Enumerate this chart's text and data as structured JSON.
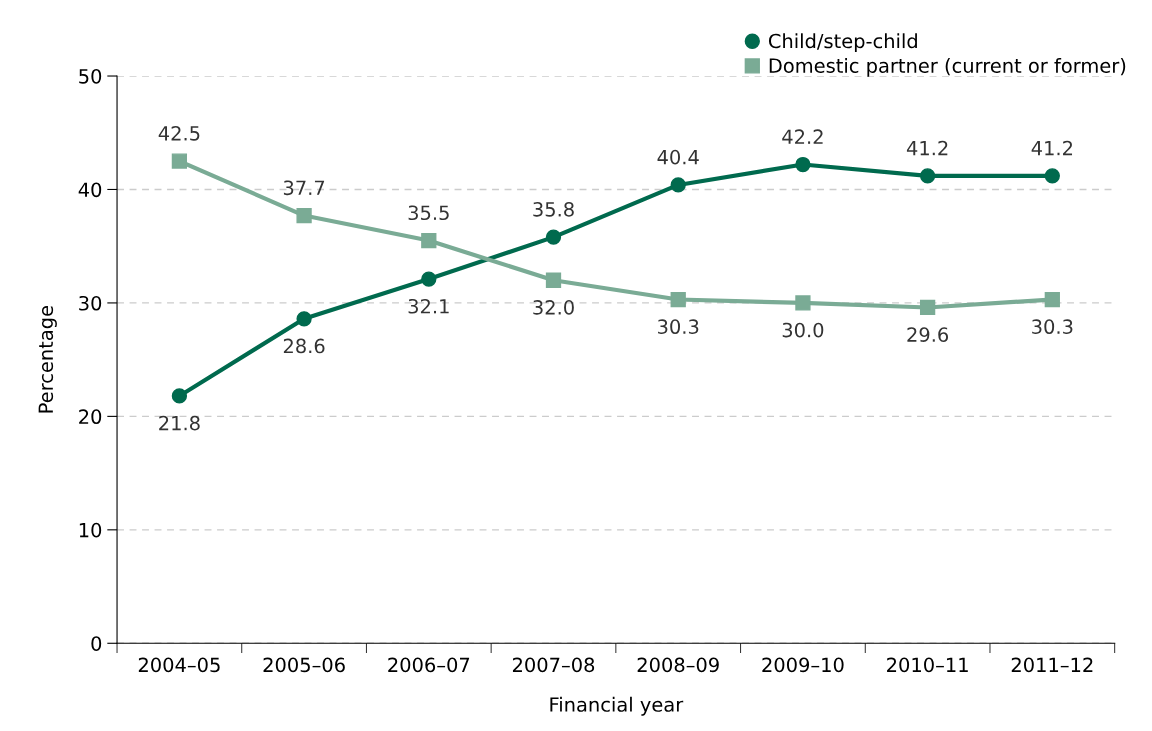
{
  "chart_data": {
    "type": "line",
    "xlabel": "Financial year",
    "ylabel": "Percentage",
    "categories": [
      "2004–05",
      "2005–06",
      "2006–07",
      "2007–08",
      "2008–09",
      "2009–10",
      "2010–11",
      "2011–12"
    ],
    "series": [
      {
        "name": "Child/step-child",
        "color": "#006a4e",
        "marker": "circle",
        "values": [
          21.8,
          28.6,
          32.1,
          35.8,
          40.4,
          42.2,
          41.2,
          41.2
        ],
        "value_labels": [
          "21.8",
          "28.6",
          "32.1",
          "35.8",
          "40.4",
          "42.2",
          "41.2",
          "41.2"
        ]
      },
      {
        "name": "Domestic partner (current or former)",
        "color": "#7aab95",
        "marker": "square",
        "values": [
          42.5,
          37.7,
          35.5,
          32.0,
          30.3,
          30.0,
          29.6,
          30.3
        ],
        "value_labels": [
          "42.5",
          "37.7",
          "35.5",
          "32.0",
          "30.3",
          "30.0",
          "29.6",
          "30.3"
        ]
      }
    ],
    "ylim": [
      0,
      50
    ],
    "yticks": [
      0,
      10,
      20,
      30,
      40,
      50
    ],
    "grid": "y",
    "legend": "top right",
    "line_style": "solid"
  }
}
